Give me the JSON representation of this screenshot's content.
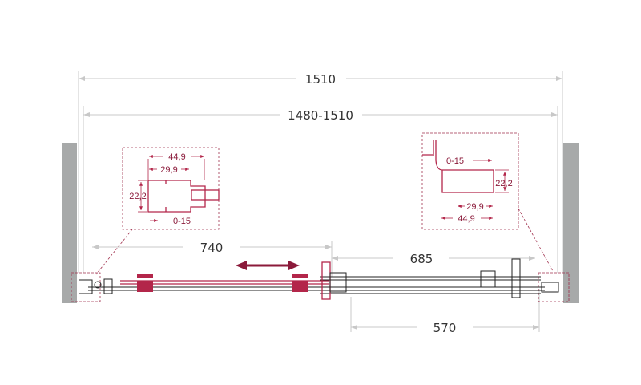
{
  "dimensions": {
    "overall_width": "1510",
    "adjustable_width": "1480-1510",
    "fixed_panel": "740",
    "sliding_panel": "685",
    "opening": "570"
  },
  "profile_left": {
    "w_outer": "44,9",
    "w_inner": "29,9",
    "height": "22,2",
    "adjust": "0-15"
  },
  "profile_right": {
    "w_outer": "44,9",
    "w_inner": "29,9",
    "height": "22,2",
    "adjust": "0-15"
  },
  "colors": {
    "accent": "#8b1a3a",
    "wall": "#a7a9a9",
    "dimension_line": "#c8c8c8"
  },
  "icons": {
    "slide_direction": "double-arrow-horizontal"
  }
}
